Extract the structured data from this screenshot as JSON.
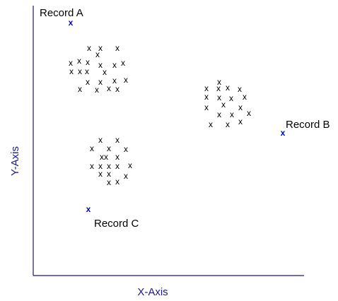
{
  "chart_data": {
    "type": "scatter",
    "title": "",
    "xlabel": "X-Axis",
    "ylabel": "Y-Axis",
    "marker": "x",
    "colors": {
      "clusters": "#000000",
      "records": "#0000cc",
      "axes": "#1a1a5e",
      "axis_titles": "#1a1a80"
    },
    "series": [
      {
        "points": [
          [
            126,
            68
          ],
          [
            142,
            68
          ],
          [
            166,
            68
          ],
          [
            138,
            77
          ],
          [
            100,
            89
          ],
          [
            112,
            86
          ],
          [
            124,
            88
          ],
          [
            142,
            92
          ],
          [
            162,
            92
          ],
          [
            174,
            89
          ],
          [
            101,
            101
          ],
          [
            113,
            101
          ],
          [
            123,
            101
          ],
          [
            148,
            102
          ],
          [
            124,
            116
          ],
          [
            142,
            116
          ],
          [
            162,
            114
          ],
          [
            178,
            113
          ],
          [
            113,
            126
          ],
          [
            137,
            127
          ],
          [
            154,
            125
          ],
          [
            166,
            126
          ]
        ]
      },
      {
        "points": [
          [
            310,
            116
          ],
          [
            292,
            125
          ],
          [
            309,
            125
          ],
          [
            322,
            124
          ],
          [
            339,
            126
          ],
          [
            292,
            137
          ],
          [
            310,
            138
          ],
          [
            327,
            139
          ],
          [
            346,
            137
          ],
          [
            292,
            152
          ],
          [
            316,
            148
          ],
          [
            340,
            152
          ],
          [
            310,
            162
          ],
          [
            328,
            162
          ],
          [
            352,
            160
          ],
          [
            298,
            176
          ],
          [
            322,
            176
          ],
          [
            340,
            172
          ]
        ]
      },
      {
        "points": [
          [
            142,
            198
          ],
          [
            166,
            198
          ],
          [
            130,
            210
          ],
          [
            154,
            210
          ],
          [
            178,
            211
          ],
          [
            144,
            222
          ],
          [
            150,
            222
          ],
          [
            166,
            222
          ],
          [
            130,
            235
          ],
          [
            142,
            235
          ],
          [
            154,
            235
          ],
          [
            166,
            235
          ],
          [
            184,
            234
          ],
          [
            142,
            246
          ],
          [
            154,
            246
          ],
          [
            178,
            249
          ],
          [
            154,
            258
          ],
          [
            166,
            257
          ]
        ]
      },
      {
        "name": "Record A",
        "points": [
          [
            100,
            32
          ]
        ]
      },
      {
        "name": "Record B",
        "points": [
          [
            400,
            188
          ]
        ]
      },
      {
        "name": "Record C",
        "points": [
          [
            125,
            296
          ]
        ]
      }
    ],
    "annotations": [
      "Record A",
      "Record B",
      "Record C"
    ],
    "grid": false,
    "legend": "none"
  }
}
